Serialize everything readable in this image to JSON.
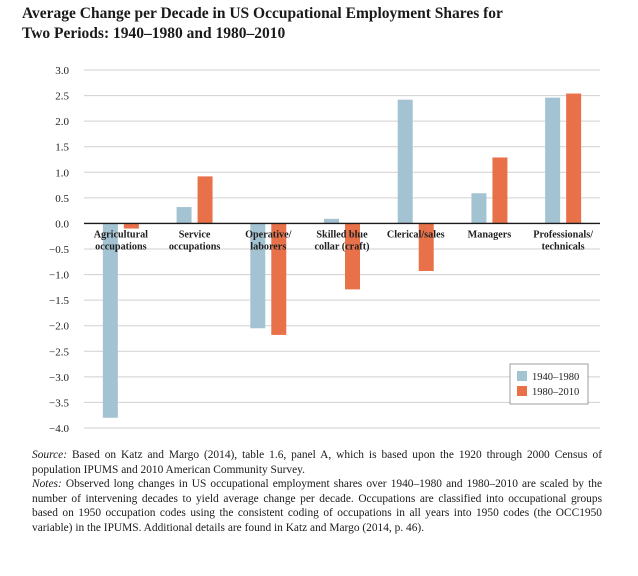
{
  "title": {
    "line1": "Average Change per Decade in US Occupational Employment Shares for",
    "line2": "Two Periods: 1940–1980 and 1980–2010"
  },
  "notes": {
    "source_label": "Source:",
    "source_text": " Based on Katz and Margo (2014), table 1.6, panel A, which is based upon the 1920 through 2000 Census of population IPUMS and 2010 American Community Survey.",
    "notes_label": "Notes:",
    "notes_text": " Observed long changes in US occupational employment shares over 1940–1980 and 1980–2010 are scaled by the number of intervening decades to yield average change per decade. Occupations are classified into occupational groups based on 1950 occupation codes using the consistent coding of occupations in all years into 1950 codes (the OCC1950 variable) in the IPUMS. Additional details are found in Katz and Margo (2014, p. 46)."
  },
  "chart_data": {
    "type": "bar",
    "title": "Average Change per Decade in US Occupational Employment Shares for Two Periods: 1940–1980 and 1980–2010",
    "xlabel": "",
    "ylabel": "",
    "ylim": [
      -4.0,
      3.0
    ],
    "yticks": [
      "3.0",
      "2.5",
      "2.0",
      "1.5",
      "1.0",
      "0.5",
      "0.0",
      "−0.5",
      "−1.0",
      "−1.5",
      "−2.0",
      "−2.5",
      "−3.0",
      "−3.5",
      "−4.0"
    ],
    "ytick_values": [
      3.0,
      2.5,
      2.0,
      1.5,
      1.0,
      0.5,
      0.0,
      -0.5,
      -1.0,
      -1.5,
      -2.0,
      -2.5,
      -3.0,
      -3.5,
      -4.0
    ],
    "grid": true,
    "legend_position": "bottom-right",
    "categories": [
      [
        "Agricultural",
        "occupations"
      ],
      [
        "Service",
        "occupations"
      ],
      [
        "Operative/",
        "laborers"
      ],
      [
        "Skilled blue",
        "collar (craft)"
      ],
      [
        "Clerical/sales"
      ],
      [
        "Managers"
      ],
      [
        "Professionals/",
        "technicals"
      ]
    ],
    "series": [
      {
        "name": "1940–1980",
        "color": "#a4c3d2",
        "values": [
          -3.8,
          0.32,
          -2.05,
          0.09,
          2.42,
          0.59,
          2.46
        ]
      },
      {
        "name": "1980–2010",
        "color": "#e8714a",
        "values": [
          -0.1,
          0.92,
          -2.18,
          -1.29,
          -0.93,
          1.29,
          2.54
        ]
      }
    ]
  }
}
